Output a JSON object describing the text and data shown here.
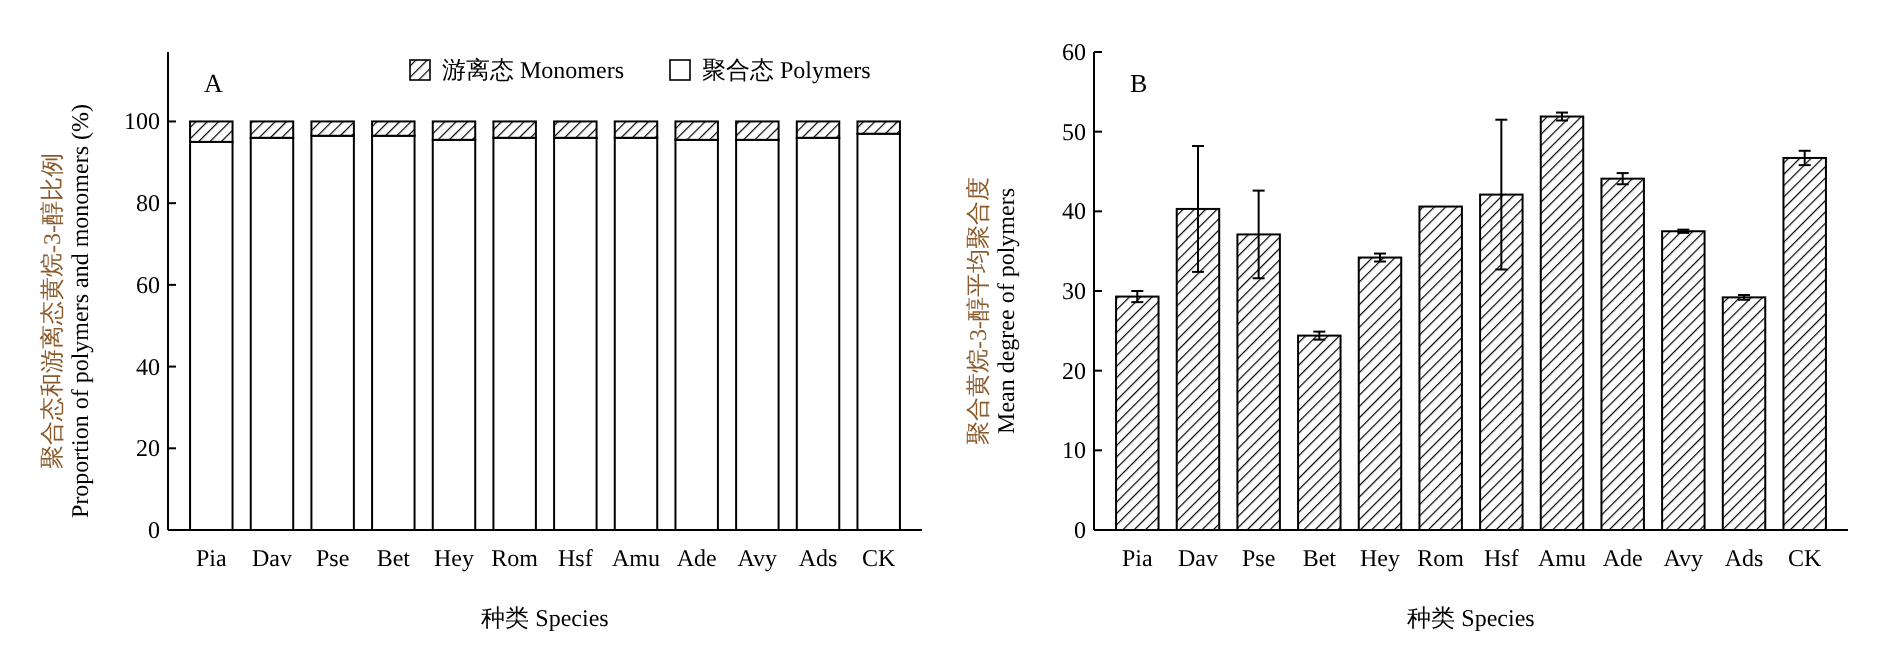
{
  "chart_data": [
    {
      "type": "bar",
      "stacked": true,
      "ylabel": "聚合态和游离态黄烷-3-醇比例\nProportion of polymers and monomers (%)",
      "xlabel": "种类 Species",
      "annotations": [
        "A"
      ],
      "categories": [
        "Pia",
        "Dav",
        "Pse",
        "Bet",
        "Hey",
        "Rom",
        "Hsf",
        "Amu",
        "Ade",
        "Avy",
        "Ads",
        "CK"
      ],
      "series": [
        {
          "name": "聚合态 Polymers",
          "color": "#ffffff",
          "values": [
            95,
            96,
            96.5,
            96.5,
            95.5,
            96,
            96,
            96,
            95.5,
            95.5,
            96,
            97
          ]
        },
        {
          "name": "游离态 Monomers",
          "color": "#000000",
          "values": [
            5,
            4,
            3.5,
            3.5,
            4.5,
            4,
            4,
            4,
            4.5,
            4.5,
            4,
            3
          ]
        }
      ],
      "ylim": [
        0,
        117
      ],
      "yticks": [
        0,
        20,
        40,
        60,
        80,
        100
      ],
      "legend": "top right",
      "grid": false
    },
    {
      "type": "bar",
      "ylabel": "聚合黄烷-3-醇平均聚合度\nMean degree of polymers",
      "xlabel": "种类 Species",
      "annotations": [
        "B"
      ],
      "categories": [
        "Pia",
        "Dav",
        "Pse",
        "Bet",
        "Hey",
        "Rom",
        "Hsf",
        "Amu",
        "Ade",
        "Avy",
        "Ads",
        "CK"
      ],
      "series": [
        {
          "color": "#000000",
          "values": [
            29.3,
            40.3,
            37.1,
            24.4,
            34.2,
            40.6,
            42.1,
            51.9,
            44.1,
            37.5,
            29.2,
            46.7
          ],
          "errors": [
            0.7,
            7.9,
            5.5,
            0.5,
            0.5,
            null,
            9.4,
            0.5,
            0.7,
            0.2,
            0.3,
            0.9
          ]
        }
      ],
      "ylim": [
        0,
        60
      ],
      "yticks": [
        0,
        10,
        20,
        30,
        40,
        50,
        60
      ],
      "legend": false,
      "grid": false
    }
  ]
}
